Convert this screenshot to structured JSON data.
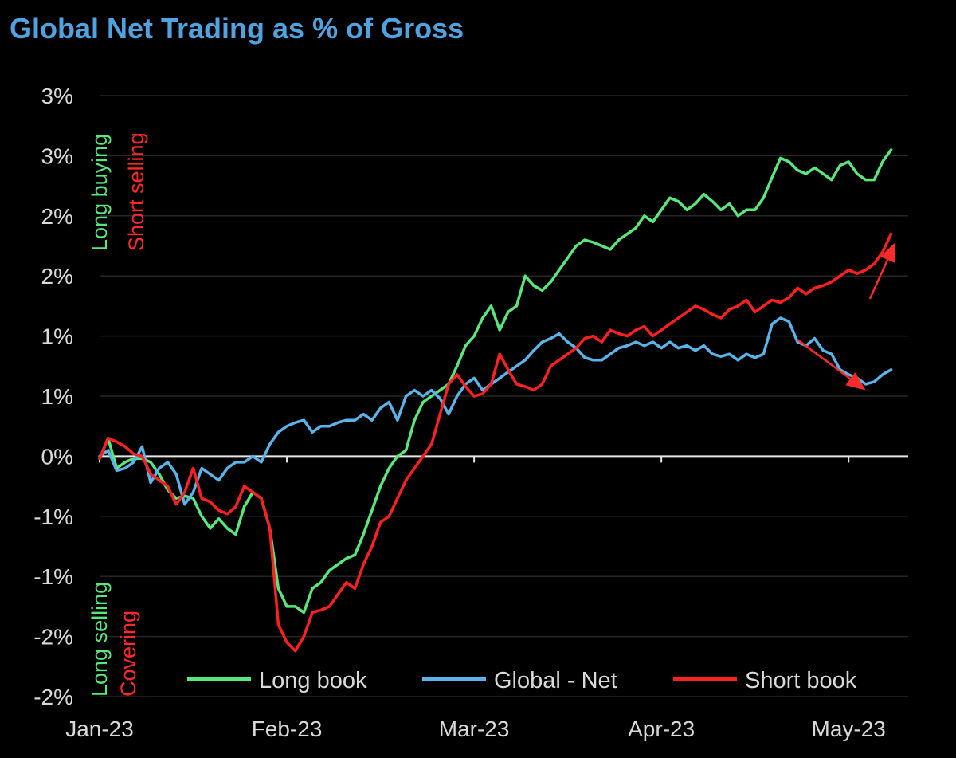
{
  "chart_data": {
    "type": "line",
    "title": "Global Net Trading as % of Gross",
    "xlabel": "",
    "ylabel": "",
    "ylim": [
      -2.0,
      3.0
    ],
    "grid": true,
    "legend_position": "bottom",
    "x_tick_labels": [
      "Jan-23",
      "Feb-23",
      "Mar-23",
      "Apr-23",
      "May-23"
    ],
    "x_tick_positions": [
      0,
      44,
      88,
      132,
      176
    ],
    "x_max": 190,
    "y_ticks": [
      -2.0,
      -1.5,
      -1.0,
      -0.5,
      0.0,
      0.5,
      1.0,
      1.5,
      2.0,
      2.5,
      3.0
    ],
    "y_tick_labels": [
      "-2%",
      "-2%",
      "-1%",
      "-1%",
      "0%",
      "1%",
      "1%",
      "2%",
      "2%",
      "3%",
      "3%"
    ],
    "annotations": {
      "upper_green": "Long buying",
      "upper_red": "Short selling",
      "lower_green": "Long selling",
      "lower_red": "Covering"
    },
    "trend_arrows": [
      {
        "series": "Short book",
        "from": [
          181,
          1.31
        ],
        "to": [
          187,
          1.78
        ],
        "color": "#ff2a2a"
      },
      {
        "series": "Global - Net",
        "from": [
          164,
          0.97
        ],
        "to": [
          180,
          0.55
        ],
        "color": "#ff2a2a"
      }
    ],
    "series": [
      {
        "name": "Long book",
        "color": "#59e67a",
        "points": [
          [
            0,
            -0.02
          ],
          [
            2,
            0.15
          ],
          [
            4,
            -0.1
          ],
          [
            6,
            -0.05
          ],
          [
            8,
            -0.02
          ],
          [
            10,
            -0.02
          ],
          [
            12,
            -0.05
          ],
          [
            14,
            -0.15
          ],
          [
            16,
            -0.28
          ],
          [
            18,
            -0.35
          ],
          [
            20,
            -0.33
          ],
          [
            22,
            -0.35
          ],
          [
            24,
            -0.5
          ],
          [
            26,
            -0.6
          ],
          [
            28,
            -0.52
          ],
          [
            30,
            -0.6
          ],
          [
            32,
            -0.65
          ],
          [
            34,
            -0.42
          ],
          [
            36,
            -0.3
          ],
          [
            38,
            -0.35
          ],
          [
            40,
            -0.6
          ],
          [
            42,
            -1.1
          ],
          [
            44,
            -1.25
          ],
          [
            46,
            -1.25
          ],
          [
            48,
            -1.3
          ],
          [
            50,
            -1.1
          ],
          [
            52,
            -1.05
          ],
          [
            54,
            -0.95
          ],
          [
            56,
            -0.9
          ],
          [
            58,
            -0.85
          ],
          [
            60,
            -0.82
          ],
          [
            62,
            -0.65
          ],
          [
            64,
            -0.45
          ],
          [
            66,
            -0.25
          ],
          [
            68,
            -0.1
          ],
          [
            70,
            0.0
          ],
          [
            72,
            0.05
          ],
          [
            74,
            0.3
          ],
          [
            76,
            0.45
          ],
          [
            78,
            0.5
          ],
          [
            80,
            0.55
          ],
          [
            82,
            0.6
          ],
          [
            84,
            0.75
          ],
          [
            86,
            0.92
          ],
          [
            88,
            1.0
          ],
          [
            90,
            1.15
          ],
          [
            92,
            1.25
          ],
          [
            94,
            1.05
          ],
          [
            96,
            1.2
          ],
          [
            98,
            1.25
          ],
          [
            100,
            1.5
          ],
          [
            102,
            1.42
          ],
          [
            104,
            1.38
          ],
          [
            106,
            1.45
          ],
          [
            108,
            1.55
          ],
          [
            110,
            1.65
          ],
          [
            112,
            1.75
          ],
          [
            114,
            1.8
          ],
          [
            116,
            1.78
          ],
          [
            118,
            1.75
          ],
          [
            120,
            1.72
          ],
          [
            122,
            1.8
          ],
          [
            124,
            1.85
          ],
          [
            126,
            1.9
          ],
          [
            128,
            2.0
          ],
          [
            130,
            1.95
          ],
          [
            132,
            2.05
          ],
          [
            134,
            2.15
          ],
          [
            136,
            2.12
          ],
          [
            138,
            2.05
          ],
          [
            140,
            2.1
          ],
          [
            142,
            2.18
          ],
          [
            144,
            2.12
          ],
          [
            146,
            2.05
          ],
          [
            148,
            2.1
          ],
          [
            150,
            2.0
          ],
          [
            152,
            2.05
          ],
          [
            154,
            2.05
          ],
          [
            156,
            2.15
          ],
          [
            158,
            2.32
          ],
          [
            160,
            2.48
          ],
          [
            162,
            2.45
          ],
          [
            164,
            2.38
          ],
          [
            166,
            2.35
          ],
          [
            168,
            2.4
          ],
          [
            170,
            2.35
          ],
          [
            172,
            2.3
          ],
          [
            174,
            2.42
          ],
          [
            176,
            2.45
          ],
          [
            178,
            2.35
          ],
          [
            180,
            2.3
          ],
          [
            182,
            2.3
          ],
          [
            184,
            2.45
          ],
          [
            186,
            2.55
          ]
        ]
      },
      {
        "name": "Global - Net",
        "color": "#5ab4ea",
        "points": [
          [
            0,
            0.0
          ],
          [
            2,
            0.05
          ],
          [
            4,
            -0.12
          ],
          [
            6,
            -0.1
          ],
          [
            8,
            -0.05
          ],
          [
            10,
            0.08
          ],
          [
            12,
            -0.22
          ],
          [
            14,
            -0.1
          ],
          [
            16,
            -0.05
          ],
          [
            18,
            -0.15
          ],
          [
            20,
            -0.4
          ],
          [
            22,
            -0.3
          ],
          [
            24,
            -0.1
          ],
          [
            26,
            -0.15
          ],
          [
            28,
            -0.2
          ],
          [
            30,
            -0.1
          ],
          [
            32,
            -0.05
          ],
          [
            34,
            -0.05
          ],
          [
            36,
            0.0
          ],
          [
            38,
            -0.05
          ],
          [
            40,
            0.1
          ],
          [
            42,
            0.2
          ],
          [
            44,
            0.25
          ],
          [
            46,
            0.28
          ],
          [
            48,
            0.3
          ],
          [
            50,
            0.2
          ],
          [
            52,
            0.25
          ],
          [
            54,
            0.25
          ],
          [
            56,
            0.28
          ],
          [
            58,
            0.3
          ],
          [
            60,
            0.3
          ],
          [
            62,
            0.35
          ],
          [
            64,
            0.3
          ],
          [
            66,
            0.4
          ],
          [
            68,
            0.45
          ],
          [
            70,
            0.3
          ],
          [
            72,
            0.5
          ],
          [
            74,
            0.55
          ],
          [
            76,
            0.5
          ],
          [
            78,
            0.55
          ],
          [
            80,
            0.48
          ],
          [
            82,
            0.35
          ],
          [
            84,
            0.5
          ],
          [
            86,
            0.6
          ],
          [
            88,
            0.65
          ],
          [
            90,
            0.55
          ],
          [
            92,
            0.6
          ],
          [
            94,
            0.65
          ],
          [
            96,
            0.7
          ],
          [
            98,
            0.75
          ],
          [
            100,
            0.8
          ],
          [
            102,
            0.88
          ],
          [
            104,
            0.95
          ],
          [
            106,
            0.98
          ],
          [
            108,
            1.02
          ],
          [
            110,
            0.95
          ],
          [
            112,
            0.9
          ],
          [
            114,
            0.82
          ],
          [
            116,
            0.8
          ],
          [
            118,
            0.8
          ],
          [
            120,
            0.85
          ],
          [
            122,
            0.9
          ],
          [
            124,
            0.92
          ],
          [
            126,
            0.95
          ],
          [
            128,
            0.92
          ],
          [
            130,
            0.95
          ],
          [
            132,
            0.9
          ],
          [
            134,
            0.95
          ],
          [
            136,
            0.9
          ],
          [
            138,
            0.92
          ],
          [
            140,
            0.88
          ],
          [
            142,
            0.92
          ],
          [
            144,
            0.85
          ],
          [
            146,
            0.83
          ],
          [
            148,
            0.85
          ],
          [
            150,
            0.8
          ],
          [
            152,
            0.85
          ],
          [
            154,
            0.82
          ],
          [
            156,
            0.85
          ],
          [
            158,
            1.1
          ],
          [
            160,
            1.15
          ],
          [
            162,
            1.12
          ],
          [
            164,
            0.95
          ],
          [
            166,
            0.92
          ],
          [
            168,
            0.98
          ],
          [
            170,
            0.88
          ],
          [
            172,
            0.85
          ],
          [
            174,
            0.72
          ],
          [
            176,
            0.68
          ],
          [
            178,
            0.65
          ],
          [
            180,
            0.6
          ],
          [
            182,
            0.62
          ],
          [
            184,
            0.68
          ],
          [
            186,
            0.72
          ]
        ]
      },
      {
        "name": "Short book",
        "color": "#ff2020",
        "points": [
          [
            0,
            -0.02
          ],
          [
            2,
            0.15
          ],
          [
            4,
            0.12
          ],
          [
            6,
            0.08
          ],
          [
            8,
            0.02
          ],
          [
            10,
            0.0
          ],
          [
            12,
            -0.15
          ],
          [
            14,
            -0.2
          ],
          [
            16,
            -0.25
          ],
          [
            18,
            -0.4
          ],
          [
            20,
            -0.3
          ],
          [
            22,
            -0.1
          ],
          [
            24,
            -0.35
          ],
          [
            26,
            -0.38
          ],
          [
            28,
            -0.45
          ],
          [
            30,
            -0.48
          ],
          [
            32,
            -0.42
          ],
          [
            34,
            -0.25
          ],
          [
            36,
            -0.3
          ],
          [
            38,
            -0.35
          ],
          [
            40,
            -0.6
          ],
          [
            42,
            -1.4
          ],
          [
            44,
            -1.55
          ],
          [
            46,
            -1.62
          ],
          [
            48,
            -1.5
          ],
          [
            50,
            -1.3
          ],
          [
            52,
            -1.28
          ],
          [
            54,
            -1.25
          ],
          [
            56,
            -1.15
          ],
          [
            58,
            -1.05
          ],
          [
            60,
            -1.1
          ],
          [
            62,
            -0.9
          ],
          [
            64,
            -0.75
          ],
          [
            66,
            -0.55
          ],
          [
            68,
            -0.5
          ],
          [
            70,
            -0.35
          ],
          [
            72,
            -0.2
          ],
          [
            74,
            -0.1
          ],
          [
            76,
            0.0
          ],
          [
            78,
            0.1
          ],
          [
            80,
            0.35
          ],
          [
            82,
            0.6
          ],
          [
            84,
            0.68
          ],
          [
            86,
            0.58
          ],
          [
            88,
            0.5
          ],
          [
            90,
            0.52
          ],
          [
            92,
            0.6
          ],
          [
            94,
            0.85
          ],
          [
            96,
            0.72
          ],
          [
            98,
            0.6
          ],
          [
            100,
            0.58
          ],
          [
            102,
            0.55
          ],
          [
            104,
            0.6
          ],
          [
            106,
            0.75
          ],
          [
            108,
            0.8
          ],
          [
            110,
            0.85
          ],
          [
            112,
            0.9
          ],
          [
            114,
            0.98
          ],
          [
            116,
            1.0
          ],
          [
            118,
            0.95
          ],
          [
            120,
            1.05
          ],
          [
            122,
            1.02
          ],
          [
            124,
            1.0
          ],
          [
            126,
            1.05
          ],
          [
            128,
            1.08
          ],
          [
            130,
            1.0
          ],
          [
            132,
            1.05
          ],
          [
            134,
            1.1
          ],
          [
            136,
            1.15
          ],
          [
            138,
            1.2
          ],
          [
            140,
            1.25
          ],
          [
            142,
            1.22
          ],
          [
            144,
            1.18
          ],
          [
            146,
            1.15
          ],
          [
            148,
            1.22
          ],
          [
            150,
            1.25
          ],
          [
            152,
            1.3
          ],
          [
            154,
            1.2
          ],
          [
            156,
            1.25
          ],
          [
            158,
            1.3
          ],
          [
            160,
            1.28
          ],
          [
            162,
            1.32
          ],
          [
            164,
            1.4
          ],
          [
            166,
            1.35
          ],
          [
            168,
            1.4
          ],
          [
            170,
            1.42
          ],
          [
            172,
            1.45
          ],
          [
            174,
            1.5
          ],
          [
            176,
            1.55
          ],
          [
            178,
            1.52
          ],
          [
            180,
            1.55
          ],
          [
            182,
            1.6
          ],
          [
            184,
            1.7
          ],
          [
            186,
            1.85
          ]
        ]
      }
    ]
  }
}
